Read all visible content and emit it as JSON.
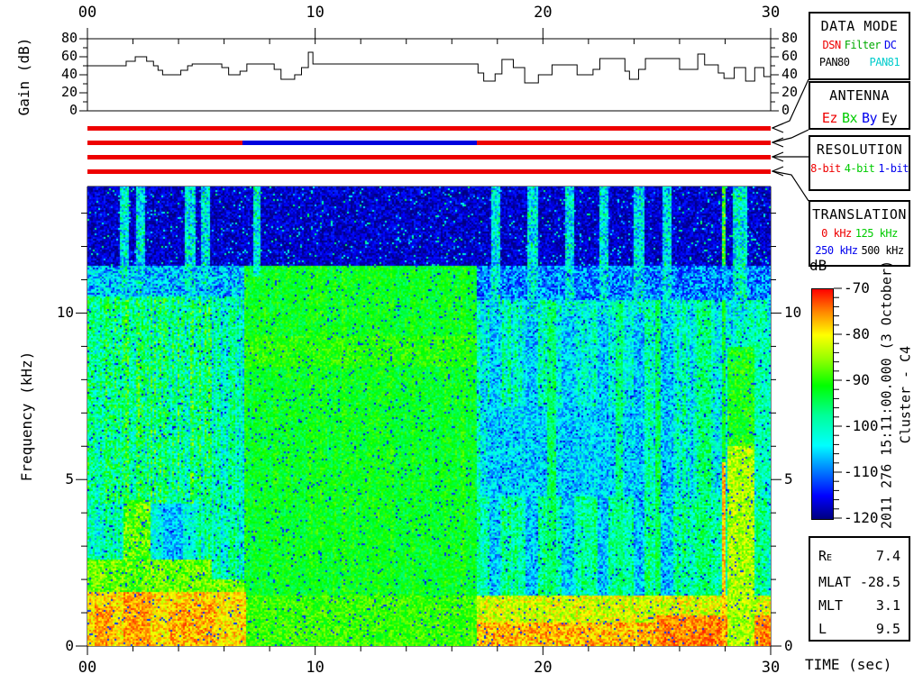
{
  "labels": {
    "gain_ylabel": "Gain (dB)",
    "freq_ylabel": "Frequency (kHz)",
    "xlabel": "TIME (sec)",
    "colorbar_label": "dB"
  },
  "side_text": {
    "timestamp": "2011 276 15:11:00.000 (3 October)",
    "spacecraft": "Cluster - C4"
  },
  "panels": [
    {
      "name": "data-mode",
      "title": "DATA MODE",
      "rows": [
        [
          {
            "text": "DSN",
            "color": "#ee0000"
          },
          {
            "text": "Filter",
            "color": "#00aa00"
          },
          {
            "text": "DC",
            "color": "#0000ee"
          }
        ],
        [
          {
            "text": "PAN80",
            "color": "#000000"
          },
          {
            "text": "PAN81",
            "color": "#00cccc"
          }
        ]
      ]
    },
    {
      "name": "antenna",
      "title": "ANTENNA",
      "rows": [
        [
          {
            "text": "Ez",
            "color": "#ee0000"
          },
          {
            "text": "Bx",
            "color": "#00cc00"
          },
          {
            "text": "By",
            "color": "#0000ee"
          },
          {
            "text": "Ey",
            "color": "#000000"
          }
        ]
      ]
    },
    {
      "name": "resolution",
      "title": "RESOLUTION",
      "rows": [
        [
          {
            "text": "8-bit",
            "color": "#ee0000"
          },
          {
            "text": "4-bit",
            "color": "#00cc00"
          },
          {
            "text": "1-bit",
            "color": "#0000ee"
          }
        ]
      ]
    },
    {
      "name": "translation",
      "title": "TRANSLATION",
      "rows": [
        [
          {
            "text": "0 kHz",
            "color": "#ee0000"
          },
          {
            "text": "125 kHz",
            "color": "#00cc00"
          }
        ],
        [
          {
            "text": "250 kHz",
            "color": "#0000ee"
          },
          {
            "text": "500 kHz",
            "color": "#000000"
          }
        ]
      ]
    }
  ],
  "status_bars": [
    {
      "name": "data-mode-bar",
      "segments": [
        {
          "color": "#ee0000",
          "t": [
            0,
            30
          ]
        }
      ]
    },
    {
      "name": "antenna-bar",
      "segments": [
        {
          "color": "#ee0000",
          "t": [
            0,
            6.8
          ]
        },
        {
          "color": "#0000dd",
          "t": [
            6.8,
            17.1
          ]
        },
        {
          "color": "#ee0000",
          "t": [
            17.1,
            30
          ]
        }
      ]
    },
    {
      "name": "resolution-bar",
      "segments": [
        {
          "color": "#ee0000",
          "t": [
            0,
            30
          ]
        }
      ]
    },
    {
      "name": "translation-bar",
      "segments": [
        {
          "color": "#ee0000",
          "t": [
            0,
            30
          ]
        }
      ]
    }
  ],
  "info_panel": {
    "rows": [
      {
        "label": "R",
        "sub": "E",
        "value": "7.4"
      },
      {
        "label": "MLAT",
        "sub": "",
        "value": "-28.5"
      },
      {
        "label": "MLT",
        "sub": "",
        "value": "3.1"
      },
      {
        "label": "L",
        "sub": "",
        "value": "9.5"
      }
    ]
  },
  "chart_data": [
    {
      "type": "line",
      "name": "agc-gain",
      "title": "AGC gain versus time",
      "ylabel": "Gain (dB)",
      "xlim": [
        0,
        30
      ],
      "ylim": [
        0,
        80
      ],
      "x_ticks": [
        0,
        10,
        20,
        30
      ],
      "x_tick_labels": [
        "00",
        "10",
        "20",
        "30"
      ],
      "x_minor_step": 2,
      "y_ticks": [
        0,
        20,
        40,
        60,
        80
      ],
      "y_minor_step": 10,
      "step_series": [
        [
          0,
          50
        ],
        [
          1.7,
          55
        ],
        [
          2.1,
          60
        ],
        [
          2.6,
          55
        ],
        [
          2.9,
          50
        ],
        [
          3.1,
          45
        ],
        [
          3.3,
          40
        ],
        [
          4.1,
          45
        ],
        [
          4.4,
          50
        ],
        [
          4.6,
          52
        ],
        [
          5.9,
          48
        ],
        [
          6.2,
          40
        ],
        [
          6.7,
          44
        ],
        [
          7.0,
          52
        ],
        [
          8.2,
          46
        ],
        [
          8.5,
          35
        ],
        [
          9.1,
          40
        ],
        [
          9.4,
          48
        ],
        [
          9.7,
          65
        ],
        [
          9.9,
          52
        ],
        [
          16.9,
          52
        ],
        [
          17.15,
          42
        ],
        [
          17.4,
          33
        ],
        [
          17.9,
          41
        ],
        [
          18.2,
          57
        ],
        [
          18.7,
          48
        ],
        [
          19.2,
          31
        ],
        [
          19.8,
          40
        ],
        [
          20.4,
          51
        ],
        [
          21.5,
          40
        ],
        [
          22.2,
          46
        ],
        [
          22.5,
          58
        ],
        [
          23.6,
          44
        ],
        [
          23.8,
          35
        ],
        [
          24.2,
          46
        ],
        [
          24.5,
          58
        ],
        [
          26.0,
          46
        ],
        [
          26.8,
          63
        ],
        [
          27.1,
          51
        ],
        [
          27.7,
          42
        ],
        [
          27.95,
          36
        ],
        [
          28.4,
          48
        ],
        [
          28.9,
          33
        ],
        [
          29.3,
          48
        ],
        [
          29.7,
          38
        ],
        [
          30,
          38
        ]
      ]
    },
    {
      "type": "heatmap",
      "name": "wbd-spectrogram",
      "title": "WBD electric field spectrogram",
      "xlabel": "TIME (sec)",
      "ylabel": "Frequency (kHz)",
      "xlim": [
        0,
        30
      ],
      "ylim": [
        0,
        13.8
      ],
      "x_ticks": [
        0,
        10,
        20,
        30
      ],
      "x_tick_labels": [
        "00",
        "10",
        "20",
        "30"
      ],
      "x_minor_step": 2,
      "y_ticks": [
        0,
        5,
        10
      ],
      "y_minor_step": 1,
      "seed": 20111003,
      "colorbar": {
        "label": "dB",
        "min": -120,
        "max": -70,
        "ticks": [
          -70,
          -80,
          -90,
          -100,
          -110,
          -120
        ],
        "minor_step": 2,
        "stops": [
          [
            0.0,
            "#000080"
          ],
          [
            0.1,
            "#0000ff"
          ],
          [
            0.22,
            "#0088ff"
          ],
          [
            0.32,
            "#00ffff"
          ],
          [
            0.45,
            "#00ff99"
          ],
          [
            0.58,
            "#00ff00"
          ],
          [
            0.7,
            "#99ff00"
          ],
          [
            0.8,
            "#ffff00"
          ],
          [
            0.9,
            "#ff8800"
          ],
          [
            1.0,
            "#ff0000"
          ]
        ]
      },
      "regions": [
        {
          "t": [
            0,
            30
          ],
          "f": [
            0,
            13.8
          ],
          "base": -97,
          "jitter": 7,
          "streak": 2
        },
        {
          "t": [
            0,
            6.9
          ],
          "f": [
            1.6,
            11.4
          ],
          "base": -96,
          "jitter": 8,
          "streak": 3
        },
        {
          "t": [
            0,
            6.9
          ],
          "f": [
            2.4,
            4.3
          ],
          "base": -99,
          "jitter": 7,
          "streak": 3
        },
        {
          "t": [
            2.5,
            4.7
          ],
          "f": [
            2.4,
            4.3
          ],
          "base": -102,
          "jitter": 6
        },
        {
          "t": [
            3.3,
            4.2
          ],
          "f": [
            2.6,
            4.3
          ],
          "base": -107,
          "jitter": 5
        },
        {
          "t": [
            0,
            6.9
          ],
          "f": [
            1.6,
            2.6
          ],
          "base": -87,
          "jitter": 5
        },
        {
          "t": [
            0,
            6.9
          ],
          "f": [
            0,
            1.6
          ],
          "base": -79,
          "jitter": 5
        },
        {
          "t": [
            0.3,
            1.1
          ],
          "f": [
            0,
            1.2
          ],
          "base": -76,
          "jitter": 4
        },
        {
          "t": [
            3.6,
            5.6
          ],
          "f": [
            0,
            1.3
          ],
          "base": -77,
          "jitter": 5
        },
        {
          "t": [
            1.6,
            2.8
          ],
          "f": [
            1.6,
            4.4
          ],
          "base": -88,
          "jitter": 6
        },
        {
          "t": [
            1.6,
            2.8
          ],
          "f": [
            0,
            1.6
          ],
          "base": -76,
          "jitter": 4
        },
        {
          "t": [
            5.5,
            6.85
          ],
          "f": [
            2,
            11.4
          ],
          "base": -100,
          "jitter": 7,
          "streak": 3
        },
        {
          "t": [
            6.9,
            17.1
          ],
          "f": [
            0,
            11.45
          ],
          "base": -92,
          "jitter": 4,
          "streak": 1
        },
        {
          "t": [
            6.9,
            17.1
          ],
          "f": [
            8.4,
            9.3
          ],
          "base": -90,
          "jitter": 4
        },
        {
          "t": [
            6.9,
            17.1
          ],
          "f": [
            0,
            1.5
          ],
          "base": -89,
          "jitter": 4
        },
        {
          "t": [
            6.85,
            6.98
          ],
          "f": [
            0,
            1.6
          ],
          "base": -77,
          "jitter": 4
        },
        {
          "t": [
            17.1,
            30
          ],
          "f": [
            1.5,
            11.4
          ],
          "base": -101,
          "jitter": 7,
          "streak": 3
        },
        {
          "t": [
            17.1,
            30
          ],
          "f": [
            1.5,
            4.5
          ],
          "base": -98,
          "jitter": 7,
          "streak": 2
        },
        {
          "t": [
            17.6,
            24.3
          ],
          "f": [
            4.5,
            7.2
          ],
          "base": -105,
          "jitter": 6
        },
        {
          "t": [
            17.65,
            18.15
          ],
          "f": [
            1.5,
            11.4
          ],
          "base": -106,
          "jitter": 6
        },
        {
          "t": [
            19.25,
            19.75
          ],
          "f": [
            1.5,
            11.4
          ],
          "base": -106,
          "jitter": 6
        },
        {
          "t": [
            20.85,
            21.35
          ],
          "f": [
            1.5,
            11.4
          ],
          "base": -106,
          "jitter": 6
        },
        {
          "t": [
            22.4,
            22.9
          ],
          "f": [
            1.5,
            11.4
          ],
          "base": -106,
          "jitter": 6
        },
        {
          "t": [
            23.95,
            24.45
          ],
          "f": [
            1.5,
            11.4
          ],
          "base": -106,
          "jitter": 6
        },
        {
          "t": [
            25.2,
            25.7
          ],
          "f": [
            1.5,
            11.4
          ],
          "base": -106,
          "jitter": 6
        },
        {
          "t": [
            20.2,
            20.6
          ],
          "f": [
            0.5,
            11.4
          ],
          "base": -95,
          "jitter": 5
        },
        {
          "t": [
            23.2,
            23.5
          ],
          "f": [
            1.5,
            11.4
          ],
          "base": -96,
          "jitter": 5
        },
        {
          "t": [
            24.95,
            25.15
          ],
          "f": [
            1.5,
            11.4
          ],
          "base": -94,
          "jitter": 5
        },
        {
          "t": [
            26.75,
            27.35
          ],
          "f": [
            0.5,
            11.4
          ],
          "base": -96,
          "jitter": 6
        },
        {
          "t": [
            29.2,
            30
          ],
          "f": [
            5,
            9.5
          ],
          "base": -99,
          "jitter": 6
        },
        {
          "t": [
            17.1,
            30
          ],
          "f": [
            0,
            1.5
          ],
          "base": -82,
          "jitter": 6
        },
        {
          "t": [
            17.1,
            30
          ],
          "f": [
            0,
            0.7
          ],
          "base": -77,
          "jitter": 5
        },
        {
          "t": [
            25,
            30
          ],
          "f": [
            0,
            0.9
          ],
          "base": -75,
          "jitter": 4
        },
        {
          "t": [
            28.1,
            29.3
          ],
          "f": [
            0,
            6
          ],
          "base": -84,
          "jitter": 5
        },
        {
          "t": [
            28.1,
            29.3
          ],
          "f": [
            6,
            9
          ],
          "base": -91,
          "jitter": 5
        },
        {
          "t": [
            27.86,
            28.06
          ],
          "f": [
            5.5,
            11.4
          ],
          "base": -92,
          "jitter": 4
        },
        {
          "t": [
            27.86,
            28.06
          ],
          "f": [
            0,
            5.5
          ],
          "base": -77,
          "jitter": 4
        },
        {
          "t": [
            0,
            6.9
          ],
          "f": [
            10.5,
            11.4
          ],
          "base": -106,
          "jitter": 8
        },
        {
          "t": [
            17.1,
            30
          ],
          "f": [
            10.4,
            11.4
          ],
          "base": -109,
          "jitter": 7
        },
        {
          "t": [
            0,
            30
          ],
          "f": [
            11.4,
            13.8
          ],
          "base": -117,
          "jitter": 4,
          "speckle": {
            "p": 0.05,
            "base": -102,
            "jitter": 8
          }
        },
        {
          "t": [
            1.45,
            1.8
          ],
          "f": [
            10.4,
            13.8
          ],
          "base": -104,
          "jitter": 8,
          "speckle": {
            "p": 0.12,
            "base": -95,
            "jitter": 6
          }
        },
        {
          "t": [
            2.1,
            2.5
          ],
          "f": [
            10.4,
            13.8
          ],
          "base": -104,
          "jitter": 8,
          "speckle": {
            "p": 0.12,
            "base": -95,
            "jitter": 6
          }
        },
        {
          "t": [
            4.3,
            4.75
          ],
          "f": [
            10.4,
            13.8
          ],
          "base": -104,
          "jitter": 8,
          "speckle": {
            "p": 0.12,
            "base": -95,
            "jitter": 6
          }
        },
        {
          "t": [
            4.95,
            5.35
          ],
          "f": [
            10.4,
            13.8
          ],
          "base": -104,
          "jitter": 8,
          "speckle": {
            "p": 0.12,
            "base": -95,
            "jitter": 6
          }
        },
        {
          "t": [
            7.3,
            7.62
          ],
          "f": [
            11.1,
            13.8
          ],
          "base": -103,
          "jitter": 8,
          "speckle": {
            "p": 0.15,
            "base": -94,
            "jitter": 6
          }
        },
        {
          "t": [
            17.7,
            18.15
          ],
          "f": [
            9.9,
            13.8
          ],
          "base": -104,
          "jitter": 8,
          "speckle": {
            "p": 0.12,
            "base": -95,
            "jitter": 6
          }
        },
        {
          "t": [
            19.3,
            19.75
          ],
          "f": [
            9.9,
            13.8
          ],
          "base": -104,
          "jitter": 8,
          "speckle": {
            "p": 0.12,
            "base": -95,
            "jitter": 6
          }
        },
        {
          "t": [
            20.95,
            21.4
          ],
          "f": [
            9.9,
            13.8
          ],
          "base": -104,
          "jitter": 8,
          "speckle": {
            "p": 0.12,
            "base": -95,
            "jitter": 6
          }
        },
        {
          "t": [
            22.45,
            22.85
          ],
          "f": [
            9.9,
            13.8
          ],
          "base": -104,
          "jitter": 8,
          "speckle": {
            "p": 0.12,
            "base": -95,
            "jitter": 6
          }
        },
        {
          "t": [
            24.0,
            24.45
          ],
          "f": [
            9.9,
            13.8
          ],
          "base": -104,
          "jitter": 8,
          "speckle": {
            "p": 0.12,
            "base": -95,
            "jitter": 6
          }
        },
        {
          "t": [
            25.25,
            25.65
          ],
          "f": [
            9.9,
            13.8
          ],
          "base": -104,
          "jitter": 8,
          "speckle": {
            "p": 0.12,
            "base": -95,
            "jitter": 6
          }
        },
        {
          "t": [
            28.3,
            28.95
          ],
          "f": [
            9.9,
            13.8
          ],
          "base": -103,
          "jitter": 8,
          "speckle": {
            "p": 0.15,
            "base": -94,
            "jitter": 6
          }
        },
        {
          "t": [
            27.86,
            28.06
          ],
          "f": [
            11.4,
            13.8
          ],
          "base": -90,
          "jitter": 8
        }
      ]
    }
  ]
}
